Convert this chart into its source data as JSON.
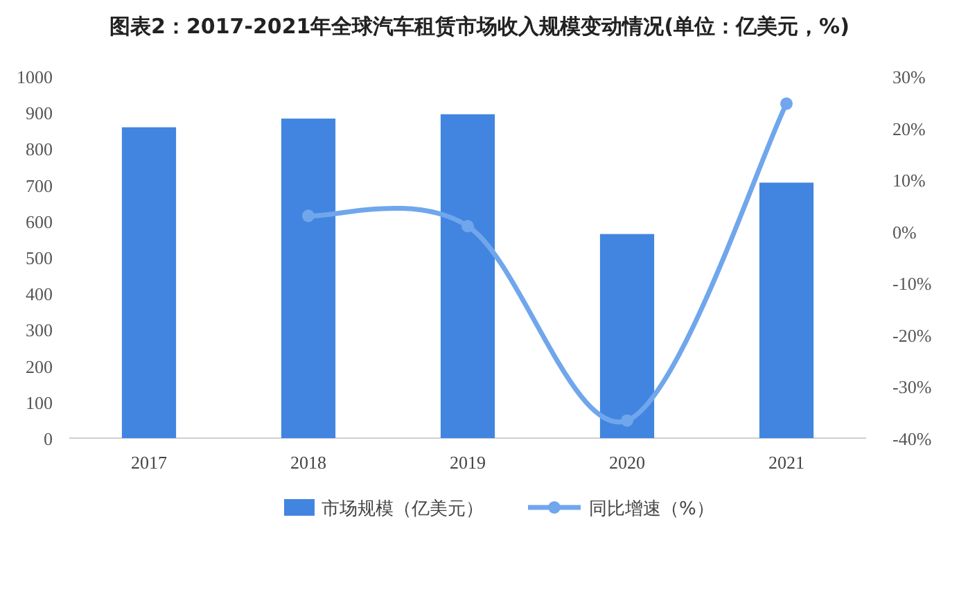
{
  "chart_data": {
    "type": "bar",
    "title": "图表2：2017-2021年全球汽车租赁市场收入规模变动情况(单位：亿美元，%)",
    "categories": [
      "2017",
      "2018",
      "2019",
      "2020",
      "2021"
    ],
    "series": [
      {
        "name": "市场规模（亿美元）",
        "color": "#4285e0",
        "values": [
          859,
          883,
          895,
          564,
          706
        ]
      },
      {
        "name": "同比增速（%）",
        "type": "line",
        "axis": "y2",
        "color": "#70a6ec",
        "marker": "circle",
        "values": [
          null,
          3.0,
          1.0,
          -36.6,
          24.7
        ]
      }
    ],
    "ylim": [
      0,
      1000
    ],
    "yticks": [
      0,
      100,
      200,
      300,
      400,
      500,
      600,
      700,
      800,
      900,
      1000
    ],
    "y2lim": [
      -40,
      30
    ],
    "y2ticks": [
      {
        "value": -40,
        "label": "-40%"
      },
      {
        "value": -30,
        "label": "-30%"
      },
      {
        "value": -20,
        "label": "-20%"
      },
      {
        "value": -10,
        "label": "-10%"
      },
      {
        "value": 0,
        "label": "0%"
      },
      {
        "value": 10,
        "label": "10%"
      },
      {
        "value": 20,
        "label": "20%"
      },
      {
        "value": 30,
        "label": "30%"
      }
    ],
    "legend": "bottom"
  }
}
